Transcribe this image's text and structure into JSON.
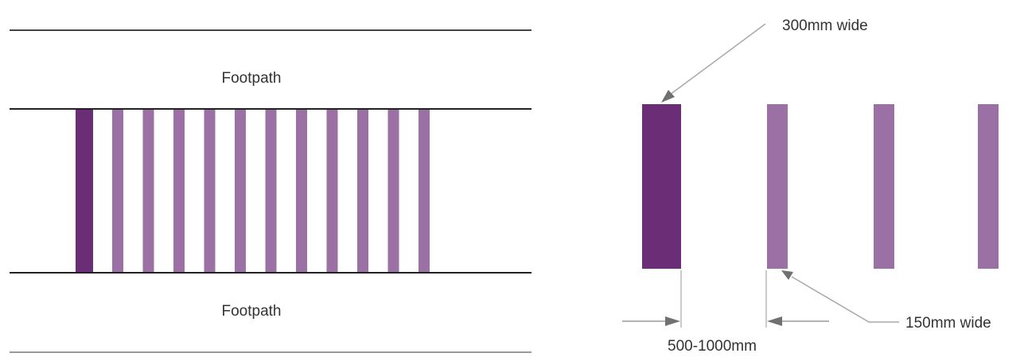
{
  "left_diagram": {
    "footpath_top_label": "Footpath",
    "footpath_bottom_label": "Footpath",
    "stripes": [
      {
        "kind": "wide"
      },
      {
        "kind": "narrow"
      },
      {
        "kind": "narrow"
      },
      {
        "kind": "narrow"
      },
      {
        "kind": "narrow"
      },
      {
        "kind": "narrow"
      },
      {
        "kind": "narrow"
      },
      {
        "kind": "narrow"
      },
      {
        "kind": "narrow"
      },
      {
        "kind": "narrow"
      },
      {
        "kind": "narrow"
      },
      {
        "kind": "narrow"
      }
    ]
  },
  "right_diagram": {
    "wide_label": "300mm wide",
    "narrow_label": "150mm wide",
    "spacing_label": "500-1000mm",
    "stripes": [
      {
        "kind": "wide"
      },
      {
        "kind": "narrow"
      },
      {
        "kind": "narrow"
      },
      {
        "kind": "narrow"
      }
    ]
  },
  "colors": {
    "wide_stripe": "#6b2d75",
    "narrow_stripe": "#9b70a4",
    "road_edge": "#222222",
    "footpath_edge": "#666666",
    "leader": "#a8a8a8",
    "arrowhead": "#707070"
  }
}
